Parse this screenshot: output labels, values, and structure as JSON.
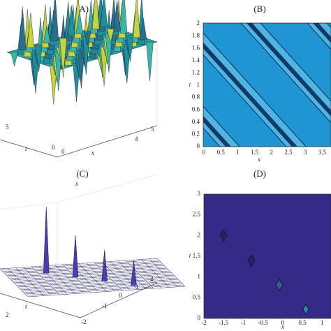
{
  "panels": [
    {
      "label": "(A)",
      "x_label": "x",
      "t_label": "t",
      "x_ticks": [
        "0",
        "4",
        "5"
      ],
      "t_ticks": [
        "0",
        "5"
      ]
    },
    {
      "label": "(B)",
      "x_label": "x",
      "t_label": "t",
      "x_ticks": [
        "0",
        "0.5",
        "1",
        "1.5",
        "2",
        "2.5",
        "3",
        "3.5"
      ],
      "t_ticks": [
        "0",
        "0.2",
        "0.4",
        "0.6",
        "0.8",
        "1",
        "1.2",
        "1.4",
        "1.6",
        "1.8",
        "2"
      ]
    },
    {
      "label": "(C)",
      "x_label": "x",
      "t_label": "t",
      "x_ticks": [
        "-2",
        "-1",
        "0",
        "1",
        "2"
      ],
      "t_ticks": [
        "2"
      ]
    },
    {
      "label": "(D)",
      "x_label": "x",
      "t_label": "t",
      "x_ticks": [
        "-2",
        "-1.5",
        "-1",
        "-0.5",
        "0",
        "0.5",
        "1"
      ],
      "t_ticks": [
        "0",
        "0.5",
        "1",
        "1.5",
        "2",
        "2.5",
        "3"
      ]
    }
  ]
}
